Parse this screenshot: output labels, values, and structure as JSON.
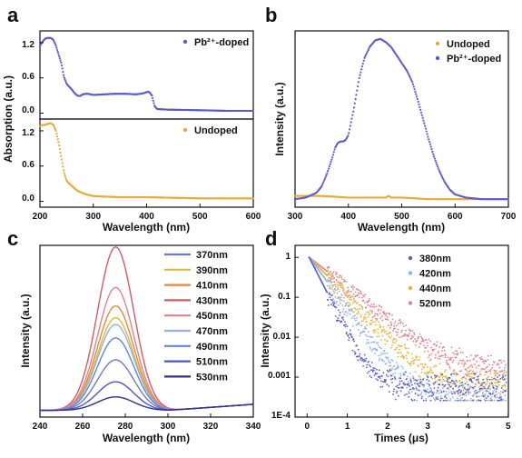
{
  "panels": {
    "a": {
      "label": "a",
      "xlabel": "Wavelength (nm)",
      "ylabel": "Absorption (a.u.)",
      "xlim": [
        200,
        600
      ],
      "xticks": [
        "200",
        "300",
        "400",
        "500",
        "600"
      ],
      "top": {
        "legend": "Pb²⁺-doped",
        "color": "#5b5bc8",
        "ylim": [
          -0.1,
          1.4
        ],
        "yticks": [
          "0.0",
          "0.6",
          "1.2"
        ],
        "x": [
          200,
          205,
          210,
          215,
          220,
          225,
          230,
          235,
          240,
          245,
          250,
          255,
          260,
          265,
          270,
          275,
          280,
          285,
          290,
          300,
          320,
          340,
          360,
          380,
          395,
          400,
          405,
          410,
          415,
          420,
          440,
          500,
          550,
          600
        ],
        "y": [
          1.15,
          1.22,
          1.27,
          1.28,
          1.28,
          1.25,
          1.15,
          1.0,
          0.85,
          0.62,
          0.5,
          0.45,
          0.4,
          0.34,
          0.3,
          0.29,
          0.32,
          0.33,
          0.33,
          0.31,
          0.32,
          0.33,
          0.33,
          0.32,
          0.34,
          0.36,
          0.36,
          0.3,
          0.12,
          0.07,
          0.06,
          0.05,
          0.04,
          0.04
        ]
      },
      "bottom": {
        "legend": "Undoped",
        "color": "#e8a93a",
        "ylim": [
          -0.1,
          1.4
        ],
        "yticks": [
          "0.0",
          "0.6",
          "1.2"
        ],
        "x": [
          200,
          205,
          210,
          215,
          220,
          225,
          230,
          235,
          240,
          245,
          250,
          255,
          260,
          265,
          270,
          280,
          290,
          300,
          320,
          350,
          400,
          450,
          500,
          550,
          600
        ],
        "y": [
          1.28,
          1.3,
          1.3,
          1.32,
          1.33,
          1.3,
          1.2,
          1.0,
          0.75,
          0.5,
          0.35,
          0.3,
          0.26,
          0.22,
          0.18,
          0.14,
          0.11,
          0.09,
          0.08,
          0.07,
          0.07,
          0.06,
          0.05,
          0.05,
          0.05
        ]
      }
    },
    "b": {
      "label": "b",
      "xlabel": "Wavelength (nm)",
      "ylabel": "Intensity (a.u.)",
      "xlim": [
        300,
        700
      ],
      "ylim": [
        -0.05,
        1.05
      ],
      "xticks": [
        "300",
        "400",
        "500",
        "600",
        "700"
      ],
      "series": [
        {
          "name": "Undoped",
          "color": "#e8a93a",
          "x": [
            300,
            350,
            400,
            450,
            470,
            475,
            480,
            500,
            550,
            600,
            650,
            700
          ],
          "y": [
            0.02,
            0.02,
            0.01,
            0.01,
            0.01,
            0.02,
            0.01,
            0.01,
            0.0,
            0.0,
            0.0,
            0.0
          ]
        },
        {
          "name": "Pb²⁺-doped",
          "color": "#5b5bc8",
          "x": [
            300,
            320,
            340,
            350,
            360,
            370,
            375,
            380,
            385,
            390,
            395,
            400,
            410,
            420,
            430,
            440,
            450,
            460,
            470,
            480,
            490,
            500,
            510,
            520,
            530,
            540,
            550,
            560,
            570,
            580,
            590,
            600,
            620,
            650,
            680,
            700
          ],
          "y": [
            0.0,
            0.01,
            0.04,
            0.08,
            0.16,
            0.26,
            0.32,
            0.35,
            0.36,
            0.36,
            0.37,
            0.4,
            0.56,
            0.75,
            0.88,
            0.95,
            0.99,
            1.0,
            0.98,
            0.95,
            0.9,
            0.85,
            0.8,
            0.73,
            0.62,
            0.5,
            0.38,
            0.27,
            0.18,
            0.11,
            0.06,
            0.03,
            0.01,
            0.0,
            0.0,
            0.0
          ]
        }
      ]
    },
    "c": {
      "label": "c",
      "xlabel": "Wavelength (nm)",
      "ylabel": "Intensity (a.u.)",
      "xlim": [
        240,
        340
      ],
      "ylim": [
        -0.02,
        1.0
      ],
      "xticks": [
        "240",
        "260",
        "280",
        "300",
        "320",
        "340"
      ],
      "legend": [
        {
          "name": "370nm",
          "color": "#6f79c8",
          "peak": 0.3
        },
        {
          "name": "390nm",
          "color": "#e6b43a",
          "peak": 0.55
        },
        {
          "name": "410nm",
          "color": "#e6893a",
          "peak": 0.62
        },
        {
          "name": "430nm",
          "color": "#d55a62",
          "peak": 0.97
        },
        {
          "name": "450nm",
          "color": "#e0828c",
          "peak": 0.73
        },
        {
          "name": "470nm",
          "color": "#8fb2e2",
          "peak": 0.51
        },
        {
          "name": "490nm",
          "color": "#5f86d8",
          "peak": 0.43
        },
        {
          "name": "510nm",
          "color": "#4d55c4",
          "peak": 0.17
        },
        {
          "name": "530nm",
          "color": "#2f2f8f",
          "peak": 0.08
        }
      ]
    },
    "d": {
      "label": "d",
      "xlabel": "Times (μs)",
      "ylabel": "Intensity (a.u.)",
      "xlim": [
        -0.3,
        5.0
      ],
      "xticks": [
        "0",
        "1",
        "2",
        "3",
        "4",
        "5"
      ],
      "yticks": [
        "1E-4",
        "0.001",
        "0.01",
        "0.1",
        "1"
      ],
      "legend": [
        {
          "name": "380nm",
          "color": "#5b5bc8",
          "tau": 0.22,
          "floor": 0.00045
        },
        {
          "name": "420nm",
          "color": "#8fb2e2",
          "tau": 0.32,
          "floor": 0.00026
        },
        {
          "name": "440nm",
          "color": "#e6b43a",
          "tau": 0.42,
          "floor": 0.00052
        },
        {
          "name": "520nm",
          "color": "#e0828c",
          "tau": 0.55,
          "floor": 0.0012
        }
      ]
    }
  }
}
